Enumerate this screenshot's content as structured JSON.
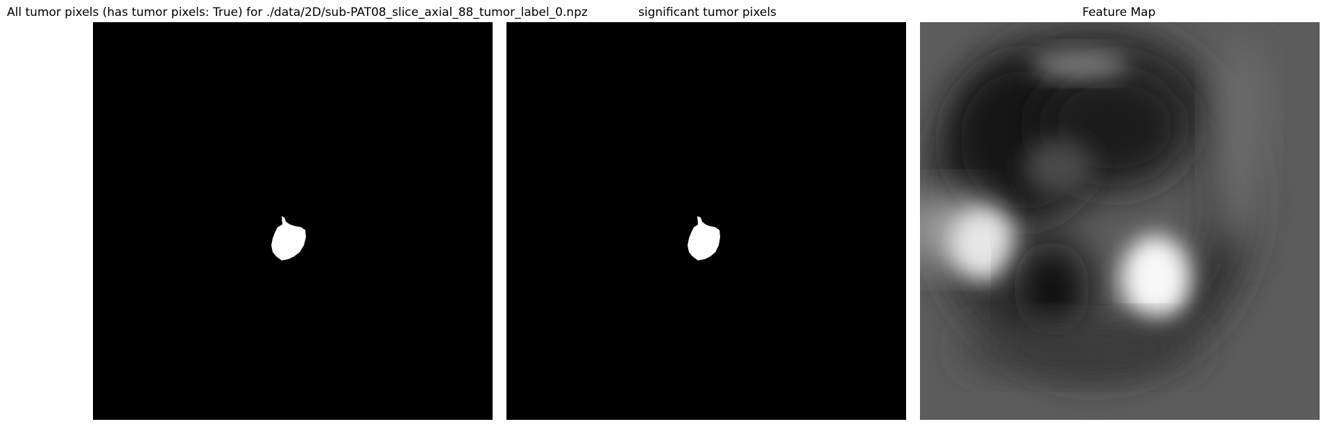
{
  "figure": {
    "panels": [
      {
        "title": "All tumor pixels (has tumor pixels: True) for ./data/2D/sub-PAT08_slice_axial_88_tumor_label_0.npz",
        "colormap": "gray"
      },
      {
        "title": "significant tumor pixels",
        "colormap": "gray"
      },
      {
        "title": "Feature Map",
        "colormap": "gray"
      }
    ]
  },
  "colors": {
    "background": "#000000",
    "mask": "#ffffff",
    "feature_base": "#5c5c5c"
  }
}
